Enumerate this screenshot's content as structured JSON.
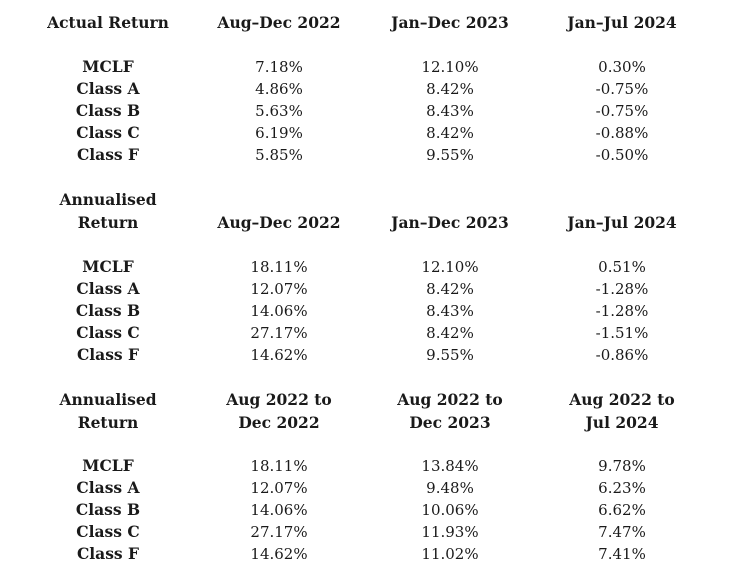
{
  "sections": [
    {
      "label_lines": [
        "Actual Return"
      ],
      "columns": [
        [
          "Aug–Dec 2022"
        ],
        [
          "Jan–Dec 2023"
        ],
        [
          "Jan–Jul 2024"
        ]
      ],
      "rows": [
        {
          "name": "MCLF",
          "values": [
            "7.18%",
            "12.10%",
            "0.30%"
          ]
        },
        {
          "name": "Class A",
          "values": [
            "4.86%",
            "8.42%",
            "-0.75%"
          ]
        },
        {
          "name": "Class B",
          "values": [
            "5.63%",
            "8.43%",
            "-0.75%"
          ]
        },
        {
          "name": "Class C",
          "values": [
            "6.19%",
            "8.42%",
            "-0.88%"
          ]
        },
        {
          "name": "Class F",
          "values": [
            "5.85%",
            "9.55%",
            "-0.50%"
          ]
        }
      ]
    },
    {
      "label_lines": [
        "Annualised",
        "Return"
      ],
      "columns": [
        [
          "Aug–Dec 2022"
        ],
        [
          "Jan–Dec 2023"
        ],
        [
          "Jan–Jul 2024"
        ]
      ],
      "rows": [
        {
          "name": "MCLF",
          "values": [
            "18.11%",
            "12.10%",
            "0.51%"
          ]
        },
        {
          "name": "Class A",
          "values": [
            "12.07%",
            "8.42%",
            "-1.28%"
          ]
        },
        {
          "name": "Class B",
          "values": [
            "14.06%",
            "8.43%",
            "-1.28%"
          ]
        },
        {
          "name": "Class C",
          "values": [
            "27.17%",
            "8.42%",
            "-1.51%"
          ]
        },
        {
          "name": "Class F",
          "values": [
            "14.62%",
            "9.55%",
            "-0.86%"
          ]
        }
      ]
    },
    {
      "label_lines": [
        "Annualised",
        "Return"
      ],
      "columns": [
        [
          "Aug 2022 to",
          "Dec 2022"
        ],
        [
          "Aug 2022 to",
          "Dec 2023"
        ],
        [
          "Aug 2022 to",
          "Jul 2024"
        ]
      ],
      "rows": [
        {
          "name": "MCLF",
          "values": [
            "18.11%",
            "13.84%",
            "9.78%"
          ]
        },
        {
          "name": "Class A",
          "values": [
            "12.07%",
            "9.48%",
            "6.23%"
          ]
        },
        {
          "name": "Class B",
          "values": [
            "14.06%",
            "10.06%",
            "6.62%"
          ]
        },
        {
          "name": "Class C",
          "values": [
            "27.17%",
            "11.93%",
            "7.47%"
          ]
        },
        {
          "name": "Class F",
          "values": [
            "14.62%",
            "11.02%",
            "7.41%"
          ]
        }
      ]
    }
  ]
}
